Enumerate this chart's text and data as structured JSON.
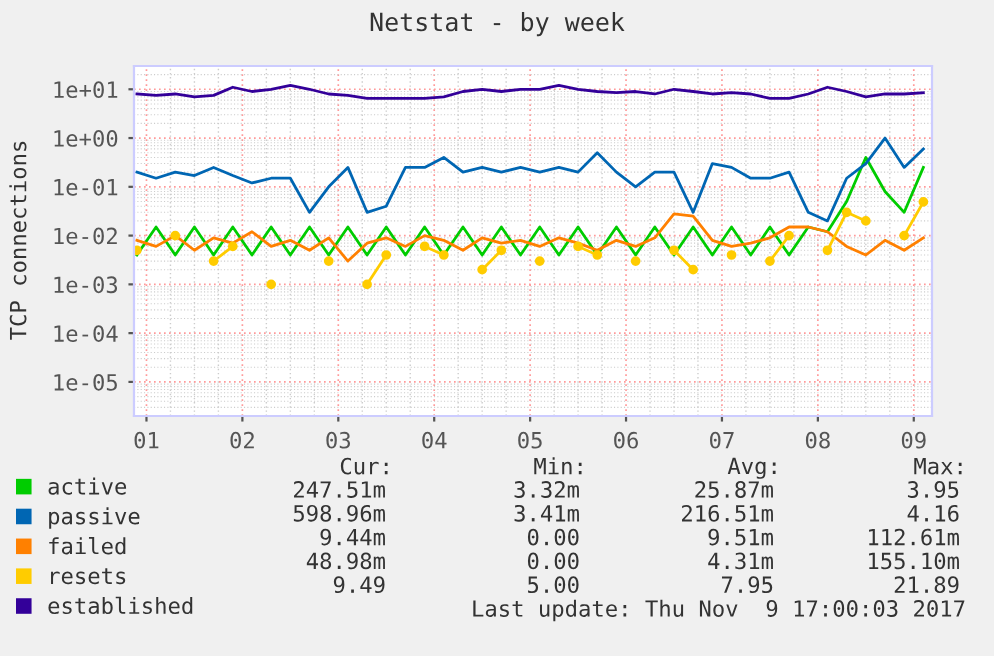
{
  "chart_data": {
    "type": "line",
    "title": "Netstat - by week",
    "ylabel": "TCP connections",
    "log": "y",
    "grid": true,
    "legend": "bottom",
    "marker": "none",
    "line_style": "solid",
    "x": [
      0.9,
      1.1,
      1.3,
      1.5,
      1.7,
      1.9,
      2.1,
      2.3,
      2.5,
      2.7,
      2.9,
      3.1,
      3.3,
      3.5,
      3.7,
      3.9,
      4.1,
      4.3,
      4.5,
      4.7,
      4.9,
      5.1,
      5.3,
      5.5,
      5.7,
      5.9,
      6.1,
      6.3,
      6.5,
      6.7,
      6.9,
      7.1,
      7.3,
      7.5,
      7.7,
      7.9,
      8.1,
      8.3,
      8.5,
      8.7,
      8.9,
      9.1
    ],
    "xlim": [
      0.87,
      9.19
    ],
    "xticks": [
      {
        "value": 1,
        "label": "01"
      },
      {
        "value": 2,
        "label": "02"
      },
      {
        "value": 3,
        "label": "03"
      },
      {
        "value": 4,
        "label": "04"
      },
      {
        "value": 5,
        "label": "05"
      },
      {
        "value": 6,
        "label": "06"
      },
      {
        "value": 7,
        "label": "07"
      },
      {
        "value": 8,
        "label": "08"
      },
      {
        "value": 9,
        "label": "09"
      }
    ],
    "ylim": [
      2e-06,
      30
    ],
    "yticks": [
      {
        "value": 1e-05,
        "label": "1e-05"
      },
      {
        "value": 0.0001,
        "label": "1e-04"
      },
      {
        "value": 0.001,
        "label": "1e-03"
      },
      {
        "value": 0.01,
        "label": "1e-02"
      },
      {
        "value": 0.1,
        "label": "1e-01"
      },
      {
        "value": 1,
        "label": "1e+00"
      },
      {
        "value": 10,
        "label": "1e+01"
      }
    ],
    "series": [
      {
        "name": "active",
        "color": "#00cc00",
        "values": [
          0.004,
          0.015,
          0.004,
          0.015,
          0.004,
          0.015,
          0.004,
          0.015,
          0.004,
          0.015,
          0.004,
          0.015,
          0.004,
          0.015,
          0.004,
          0.015,
          0.004,
          0.015,
          0.004,
          0.015,
          0.004,
          0.015,
          0.004,
          0.015,
          0.004,
          0.015,
          0.004,
          0.015,
          0.004,
          0.015,
          0.004,
          0.015,
          0.004,
          0.015,
          0.004,
          0.015,
          0.012,
          0.05,
          0.4,
          0.08,
          0.03,
          0.25
        ]
      },
      {
        "name": "passive",
        "color": "#0066b3",
        "values": [
          0.2,
          0.15,
          0.2,
          0.17,
          0.25,
          0.17,
          0.12,
          0.15,
          0.15,
          0.03,
          0.1,
          0.25,
          0.03,
          0.04,
          0.25,
          0.25,
          0.4,
          0.2,
          0.25,
          0.2,
          0.25,
          0.2,
          0.25,
          0.2,
          0.5,
          0.2,
          0.1,
          0.2,
          0.2,
          0.03,
          0.3,
          0.25,
          0.15,
          0.15,
          0.2,
          0.03,
          0.02,
          0.15,
          0.3,
          1.0,
          0.25,
          0.6
        ]
      },
      {
        "name": "failed",
        "color": "#ff8000",
        "values": [
          0.008,
          0.006,
          0.01,
          0.005,
          0.009,
          0.007,
          0.012,
          0.006,
          0.008,
          0.005,
          0.009,
          0.003,
          0.007,
          0.009,
          0.006,
          0.01,
          0.008,
          0.005,
          0.009,
          0.007,
          0.008,
          0.006,
          0.009,
          0.007,
          0.005,
          0.008,
          0.006,
          0.009,
          0.028,
          0.025,
          0.008,
          0.006,
          0.007,
          0.009,
          0.015,
          0.015,
          0.012,
          0.006,
          0.004,
          0.008,
          0.005,
          0.009
        ]
      },
      {
        "name": "resets",
        "color": "#ffcc00",
        "marker": "circle",
        "values": [
          0.005,
          null,
          0.01,
          null,
          0.003,
          0.006,
          null,
          0.001,
          null,
          null,
          0.003,
          null,
          0.001,
          0.004,
          null,
          0.006,
          0.004,
          null,
          0.002,
          0.005,
          null,
          0.003,
          null,
          0.006,
          0.004,
          null,
          0.003,
          null,
          0.005,
          0.002,
          null,
          0.004,
          null,
          0.003,
          0.01,
          null,
          0.005,
          0.03,
          0.02,
          null,
          0.01,
          0.049
        ]
      },
      {
        "name": "established",
        "color": "#330099",
        "values": [
          8,
          7.5,
          8,
          7,
          7.5,
          11,
          9,
          10,
          12,
          10,
          8,
          7.5,
          6.5,
          6.5,
          6.5,
          6.5,
          7,
          9,
          10,
          9,
          10,
          10,
          12,
          10,
          9,
          8.5,
          9,
          8,
          10,
          9,
          8,
          8.5,
          8,
          6.5,
          6.5,
          8,
          11,
          9,
          7,
          8,
          8,
          8.5
        ]
      }
    ],
    "annotations": [
      "Cur:",
      "Min:",
      "Avg:",
      "Max:",
      "247.51m",
      "3.32m",
      "25.87m",
      "3.95",
      "598.96m",
      "3.41m",
      "216.51m",
      "4.16",
      "9.44m",
      "0.00",
      "9.51m",
      "112.61m",
      "48.98m",
      "0.00",
      "4.31m",
      "155.10m",
      "9.49",
      "5.00",
      "7.95",
      "21.89",
      "Last update: Thu Nov  9 17:00:03 2017"
    ]
  }
}
